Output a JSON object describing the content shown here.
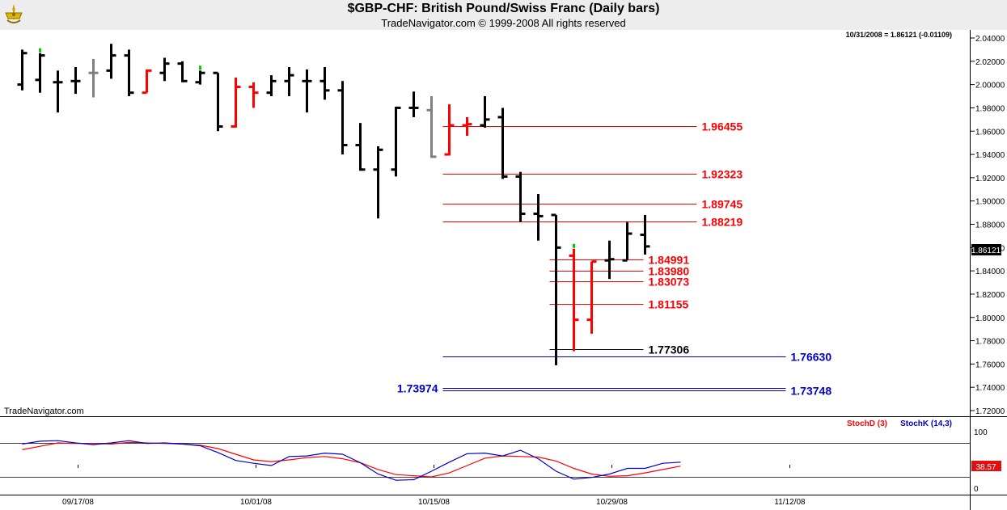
{
  "header": {
    "title": "$GBP-CHF:  British Pound/Swiss Franc  (Daily bars)",
    "subtitle": "TradeNavigator.com © 1999-2008 All rights reserved"
  },
  "info": {
    "last_quote": "10/31/2008 = 1.86121 (-0.01109)",
    "watermark": "TradeNavigator.com",
    "price_box": "1.86121"
  },
  "colors": {
    "up": "#000000",
    "down": "#ff0000",
    "neutral": "#808080",
    "green": "#00cc00",
    "red_line": "#ff0000",
    "blue_line": "#0000cc",
    "stochD": "#ff0000",
    "stochK": "#0000cc"
  },
  "chart_data": [
    {
      "type": "ohlc",
      "ylim": [
        1.7,
        2.05
      ],
      "yticks": [
        "2.04000",
        "2.02000",
        "2.00000",
        "1.98000",
        "1.96000",
        "1.94000",
        "1.92000",
        "1.90000",
        "1.88000",
        "1.86000",
        "1.84000",
        "1.82000",
        "1.80000",
        "1.78000",
        "1.76000",
        "1.74000",
        "1.72000"
      ],
      "xticks": [
        {
          "label": "09/17/08",
          "day": 3
        },
        {
          "label": "10/01/08",
          "day": 13
        },
        {
          "label": "10/15/08",
          "day": 23
        },
        {
          "label": "10/29/08",
          "day": 33
        },
        {
          "label": "11/12/08",
          "day": 43
        }
      ],
      "bars": [
        {
          "o": 2.0,
          "h": 2.03,
          "l": 1.995,
          "c": 2.027,
          "color": "black"
        },
        {
          "o": 2.004,
          "h": 2.027,
          "l": 1.993,
          "c": 2.025,
          "color": "black",
          "mark": "green"
        },
        {
          "o": 2.002,
          "h": 2.012,
          "l": 1.976,
          "c": 2.002,
          "color": "black"
        },
        {
          "o": 2.003,
          "h": 2.015,
          "l": 1.992,
          "c": 2.003,
          "color": "black"
        },
        {
          "o": 2.01,
          "h": 2.022,
          "l": 1.989,
          "c": 2.01,
          "color": "gray"
        },
        {
          "o": 2.012,
          "h": 2.035,
          "l": 2.005,
          "c": 2.025,
          "color": "black"
        },
        {
          "o": 2.025,
          "h": 2.03,
          "l": 1.99,
          "c": 1.993,
          "color": "black"
        },
        {
          "o": 1.993,
          "h": 2.013,
          "l": 1.993,
          "c": 2.012,
          "color": "red"
        },
        {
          "o": 2.01,
          "h": 2.023,
          "l": 2.003,
          "c": 2.018,
          "color": "black"
        },
        {
          "o": 2.018,
          "h": 2.02,
          "l": 2.002,
          "c": 2.003,
          "color": "black"
        },
        {
          "o": 2.002,
          "h": 2.012,
          "l": 2.0,
          "c": 2.01,
          "color": "black",
          "mark": "green"
        },
        {
          "o": 2.01,
          "h": 2.01,
          "l": 1.96,
          "c": 1.964,
          "color": "black"
        },
        {
          "o": 1.964,
          "h": 2.006,
          "l": 1.963,
          "c": 1.998,
          "color": "red"
        },
        {
          "o": 1.998,
          "h": 2.002,
          "l": 1.98,
          "c": 1.993,
          "color": "red"
        },
        {
          "o": 1.993,
          "h": 2.008,
          "l": 1.99,
          "c": 2.003,
          "color": "black"
        },
        {
          "o": 2.003,
          "h": 2.015,
          "l": 1.99,
          "c": 2.008,
          "color": "black"
        },
        {
          "o": 2.003,
          "h": 2.013,
          "l": 1.976,
          "c": 2.003,
          "color": "black"
        },
        {
          "o": 2.003,
          "h": 2.015,
          "l": 1.987,
          "c": 1.995,
          "color": "black"
        },
        {
          "o": 1.995,
          "h": 2.003,
          "l": 1.94,
          "c": 1.948,
          "color": "black"
        },
        {
          "o": 1.948,
          "h": 1.967,
          "l": 1.926,
          "c": 1.927,
          "color": "black"
        },
        {
          "o": 1.927,
          "h": 1.947,
          "l": 1.885,
          "c": 1.944,
          "color": "black"
        },
        {
          "o": 1.927,
          "h": 1.981,
          "l": 1.921,
          "c": 1.98,
          "color": "black"
        },
        {
          "o": 1.98,
          "h": 1.994,
          "l": 1.972,
          "c": 1.98,
          "color": "black"
        },
        {
          "o": 1.978,
          "h": 1.99,
          "l": 1.937,
          "c": 1.938,
          "color": "gray"
        },
        {
          "o": 1.94,
          "h": 1.983,
          "l": 1.939,
          "c": 1.965,
          "color": "red"
        },
        {
          "o": 1.965,
          "h": 1.972,
          "l": 1.956,
          "c": 1.966,
          "color": "red"
        },
        {
          "o": 1.965,
          "h": 1.99,
          "l": 1.963,
          "c": 1.97,
          "color": "black"
        },
        {
          "o": 1.972,
          "h": 1.98,
          "l": 1.919,
          "c": 1.921,
          "color": "black"
        },
        {
          "o": 1.921,
          "h": 1.925,
          "l": 1.882,
          "c": 1.889,
          "color": "black"
        },
        {
          "o": 1.889,
          "h": 1.906,
          "l": 1.866,
          "c": 1.887,
          "color": "black"
        },
        {
          "o": 1.888,
          "h": 1.888,
          "l": 1.759,
          "c": 1.86,
          "color": "black"
        },
        {
          "o": 1.853,
          "h": 1.859,
          "l": 1.771,
          "c": 1.798,
          "color": "red",
          "mark": "green"
        },
        {
          "o": 1.798,
          "h": 1.848,
          "l": 1.786,
          "c": 1.848,
          "color": "red"
        },
        {
          "o": 1.849,
          "h": 1.866,
          "l": 1.833,
          "c": 1.85,
          "color": "black"
        },
        {
          "o": 1.849,
          "h": 1.882,
          "l": 1.849,
          "c": 1.872,
          "color": "black"
        },
        {
          "o": 1.871,
          "h": 1.888,
          "l": 1.854,
          "c": 1.861,
          "color": "black"
        }
      ],
      "levels": [
        {
          "value": 1.96455,
          "label": "1.96455",
          "color": "red",
          "x0": 24,
          "x1": 38,
          "label_side": "right"
        },
        {
          "value": 1.92323,
          "label": "1.92323",
          "color": "red",
          "x0": 24,
          "x1": 38,
          "label_side": "right"
        },
        {
          "value": 1.89745,
          "label": "1.89745",
          "color": "red",
          "x0": 24,
          "x1": 38,
          "label_side": "right"
        },
        {
          "value": 1.88219,
          "label": "1.88219",
          "color": "red",
          "x0": 24,
          "x1": 38,
          "label_side": "right"
        },
        {
          "value": 1.84991,
          "label": "1.84991",
          "color": "red",
          "x0": 30,
          "x1": 35,
          "label_side": "right"
        },
        {
          "value": 1.8398,
          "label": "1.83980",
          "color": "red",
          "x0": 30,
          "x1": 35,
          "label_side": "right"
        },
        {
          "value": 1.83073,
          "label": "1.83073",
          "color": "red",
          "x0": 30,
          "x1": 35,
          "label_side": "right"
        },
        {
          "value": 1.81155,
          "label": "1.81155",
          "color": "red",
          "x0": 30,
          "x1": 35,
          "label_side": "right"
        },
        {
          "value": 1.77306,
          "label": "1.77306",
          "color": "black",
          "x0": 30,
          "x1": 35,
          "label_side": "right"
        },
        {
          "value": 1.7663,
          "label": "1.76630",
          "color": "blue",
          "x0": 24,
          "x1": 43,
          "label_side": "right"
        },
        {
          "value": 1.73974,
          "label": "1.73974",
          "color": "blue",
          "x0": 24,
          "x1": 43,
          "label_side": "left"
        },
        {
          "value": 1.73748,
          "label": "1.73748",
          "color": "blue",
          "x0": 24,
          "x1": 43,
          "label_side": "right"
        }
      ]
    },
    {
      "type": "line",
      "ylim": [
        0,
        100
      ],
      "yticks": [
        "100",
        "0"
      ],
      "reference_lines": [
        80,
        20
      ],
      "legend": [
        "StochD (3)",
        "StochK (14,3)"
      ],
      "last_value": "38.57",
      "series": [
        {
          "name": "StochD (3)",
          "color": "red",
          "values": [
            68,
            74,
            80,
            79,
            79,
            78,
            81,
            80,
            79,
            78,
            76,
            70,
            60,
            50,
            47,
            50,
            54,
            56,
            52,
            45,
            33,
            24,
            22,
            20,
            27,
            40,
            53,
            57,
            56,
            55,
            48,
            35,
            25,
            21,
            22,
            27,
            33,
            39
          ]
        },
        {
          "name": "StochK (14,3)",
          "color": "blue",
          "values": [
            78,
            83,
            84,
            80,
            77,
            80,
            84,
            79,
            80,
            78,
            75,
            63,
            49,
            44,
            40,
            56,
            57,
            62,
            60,
            45,
            25,
            14,
            15,
            30,
            46,
            61,
            62,
            57,
            67,
            52,
            30,
            16,
            19,
            25,
            35,
            35,
            44,
            46
          ]
        }
      ]
    }
  ]
}
